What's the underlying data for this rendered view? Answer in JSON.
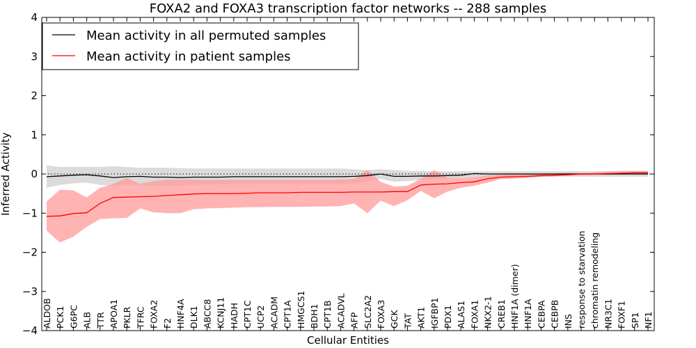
{
  "chart_data": {
    "type": "line",
    "title": "FOXA2 and FOXA3 transcription factor networks -- 288 samples",
    "xlabel": "Cellular Entities",
    "ylabel": "Inferred Activity",
    "ylim": [
      -4,
      4
    ],
    "yticks": [
      4,
      3,
      2,
      1,
      0,
      -1,
      -2,
      -3,
      -4
    ],
    "ytick_labels": [
      "4",
      "3",
      "2",
      "1",
      "0",
      "−1",
      "−2",
      "−3",
      "−4"
    ],
    "legend_position": "top-left",
    "reference_line": 0,
    "categories": [
      "ALDOB",
      "PCK1",
      "G6PC",
      "ALB",
      "TTR",
      "APOA1",
      "PKLR",
      "TFRC",
      "FOXA2",
      "F2",
      "HNF4A",
      "DLK1",
      "ABCC8",
      "KCNJ11",
      "HADH",
      "CPT1C",
      "UCP2",
      "ACADM",
      "CPT1A",
      "HMGCS1",
      "BDH1",
      "CPT1B",
      "ACADVL",
      "AFP",
      "SLC2A2",
      "FOXA3",
      "GCK",
      "TAT",
      "AKT1",
      "IGFBP1",
      "PDX1",
      "ALAS1",
      "FOXA1",
      "NKX2-1",
      "CREB1",
      "HNF1A (dimer)",
      "HNF1A",
      "CEBPA",
      "CEBPB",
      "INS",
      "response to starvation",
      "chromatin remodeling",
      "NR3C1",
      "FOXF1",
      "SP1",
      "NF1"
    ],
    "series": [
      {
        "name": "Mean activity in all permuted samples",
        "color": "#000000",
        "band_color": "#b0b0b0",
        "values": [
          -0.07,
          -0.05,
          -0.03,
          -0.02,
          -0.05,
          -0.09,
          -0.07,
          -0.06,
          -0.08,
          -0.08,
          -0.09,
          -0.08,
          -0.08,
          -0.08,
          -0.07,
          -0.07,
          -0.07,
          -0.07,
          -0.07,
          -0.07,
          -0.07,
          -0.07,
          -0.07,
          -0.06,
          -0.04,
          0.0,
          -0.06,
          -0.06,
          -0.05,
          -0.05,
          -0.04,
          -0.03,
          0.01,
          0.0,
          0.0,
          0.0,
          0.0,
          0.0,
          0.0,
          0.0,
          0.0,
          0.0,
          0.0,
          0.0,
          0.0,
          0.0
        ],
        "lower": [
          -0.35,
          -0.28,
          -0.24,
          -0.22,
          -0.28,
          -0.3,
          -0.28,
          -0.28,
          -0.3,
          -0.3,
          -0.3,
          -0.28,
          -0.27,
          -0.26,
          -0.26,
          -0.26,
          -0.26,
          -0.26,
          -0.26,
          -0.26,
          -0.26,
          -0.26,
          -0.26,
          -0.24,
          -0.2,
          -0.12,
          -0.2,
          -0.18,
          -0.15,
          -0.14,
          -0.12,
          -0.1,
          -0.08,
          -0.07,
          -0.07,
          -0.07,
          -0.07,
          -0.07,
          -0.07,
          -0.07,
          -0.07,
          -0.07,
          -0.07,
          -0.07,
          -0.07,
          -0.07
        ],
        "upper": [
          0.22,
          0.18,
          0.18,
          0.18,
          0.18,
          0.2,
          0.18,
          0.16,
          0.16,
          0.16,
          0.15,
          0.14,
          0.14,
          0.14,
          0.14,
          0.14,
          0.14,
          0.14,
          0.14,
          0.14,
          0.14,
          0.14,
          0.14,
          0.12,
          0.1,
          0.12,
          0.1,
          0.08,
          0.08,
          0.07,
          0.07,
          0.07,
          0.07,
          0.07,
          0.07,
          0.07,
          0.07,
          0.07,
          0.07,
          0.07,
          0.07,
          0.07,
          0.07,
          0.07,
          0.07,
          0.07
        ]
      },
      {
        "name": "Mean activity in patient samples",
        "color": "#ff0000",
        "band_color": "#ff9a9a",
        "values": [
          -1.08,
          -1.07,
          -1.01,
          -0.99,
          -0.75,
          -0.6,
          -0.59,
          -0.58,
          -0.57,
          -0.55,
          -0.53,
          -0.51,
          -0.5,
          -0.5,
          -0.5,
          -0.49,
          -0.48,
          -0.48,
          -0.48,
          -0.47,
          -0.47,
          -0.47,
          -0.47,
          -0.46,
          -0.46,
          -0.46,
          -0.45,
          -0.45,
          -0.28,
          -0.26,
          -0.25,
          -0.22,
          -0.2,
          -0.12,
          -0.08,
          -0.07,
          -0.06,
          -0.04,
          -0.03,
          -0.02,
          0.0,
          0.0,
          0.01,
          0.02,
          0.03,
          0.03
        ],
        "lower": [
          -1.45,
          -1.75,
          -1.6,
          -1.35,
          -1.15,
          -1.13,
          -1.12,
          -0.88,
          -0.98,
          -1.0,
          -1.0,
          -0.9,
          -0.88,
          -0.87,
          -0.86,
          -0.85,
          -0.85,
          -0.84,
          -0.84,
          -0.84,
          -0.83,
          -0.83,
          -0.82,
          -0.75,
          -1.0,
          -0.68,
          -0.82,
          -0.67,
          -0.43,
          -0.62,
          -0.45,
          -0.35,
          -0.3,
          -0.22,
          -0.13,
          -0.12,
          -0.1,
          -0.07,
          -0.06,
          -0.04,
          -0.03,
          -0.02,
          -0.02,
          -0.01,
          0.0,
          0.0
        ],
        "upper": [
          -0.7,
          -0.4,
          -0.42,
          -0.6,
          -0.35,
          -0.25,
          -0.1,
          -0.25,
          -0.18,
          -0.15,
          -0.14,
          -0.15,
          -0.15,
          -0.15,
          -0.15,
          -0.15,
          -0.15,
          -0.15,
          -0.15,
          -0.15,
          -0.15,
          -0.15,
          -0.14,
          -0.13,
          0.1,
          -0.2,
          -0.32,
          -0.3,
          -0.12,
          0.1,
          -0.1,
          -0.1,
          -0.08,
          -0.04,
          -0.02,
          -0.01,
          0.0,
          0.01,
          0.02,
          0.03,
          0.03,
          0.04,
          0.06,
          0.08,
          0.08,
          0.08
        ]
      }
    ]
  }
}
